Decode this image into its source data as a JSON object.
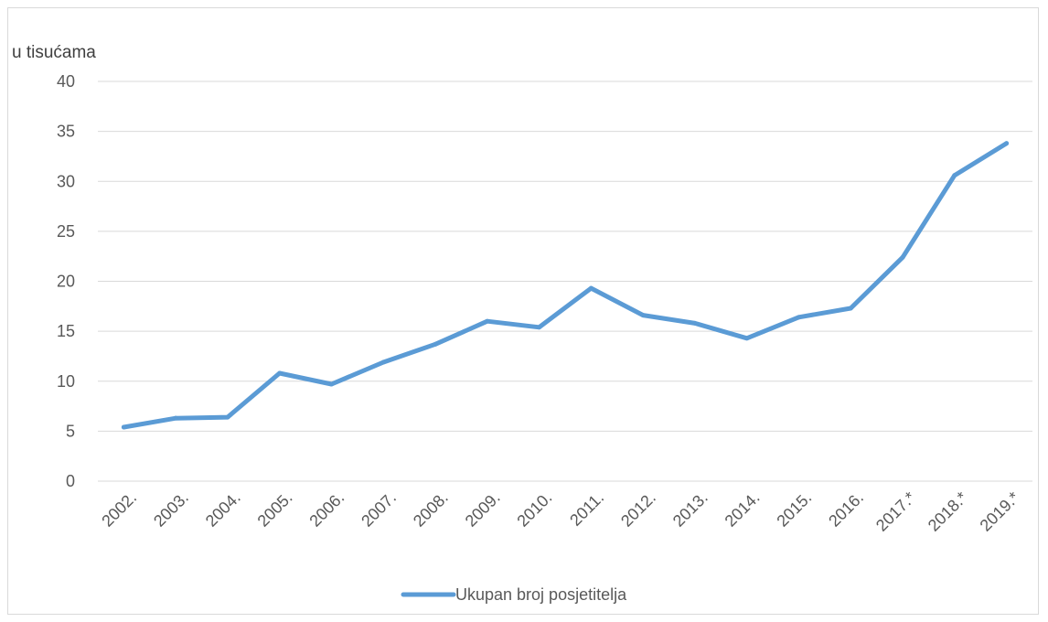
{
  "chart_data": {
    "type": "line",
    "title": "",
    "ylabel": "u tisućama",
    "xlabel": "",
    "ylim": [
      0,
      40
    ],
    "yticks": [
      0,
      5,
      10,
      15,
      20,
      25,
      30,
      35,
      40
    ],
    "grid": true,
    "legend": "bottom",
    "categories": [
      "2002.",
      "2003.",
      "2004.",
      "2005.",
      "2006.",
      "2007.",
      "2008.",
      "2009.",
      "2010.",
      "2011.",
      "2012.",
      "2013.",
      "2014.",
      "2015.",
      "2016.",
      "2017.*",
      "2018.*",
      "2019.*"
    ],
    "series": [
      {
        "name": "Ukupan broj posjetitelja",
        "color": "#5b9bd5",
        "values": [
          5.4,
          6.3,
          6.4,
          10.8,
          9.7,
          11.9,
          13.7,
          16.0,
          15.4,
          19.3,
          16.6,
          15.8,
          14.3,
          16.4,
          17.3,
          22.4,
          30.6,
          33.8
        ]
      }
    ]
  }
}
